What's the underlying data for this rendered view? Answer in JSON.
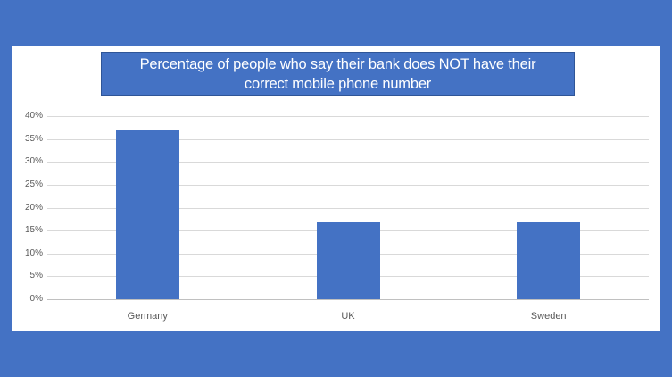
{
  "frame": {
    "background_color": "#4472C4"
  },
  "panel": {
    "background_color": "#FFFFFF"
  },
  "title_box": {
    "fill_color": "#4472C4",
    "border_color": "#2F5597",
    "text_color": "#FFFFFF",
    "lines": [
      "Percentage of people who say their bank does NOT have their",
      "correct mobile phone number"
    ]
  },
  "chart_data": {
    "type": "bar",
    "title": "Percentage of people who say their bank does NOT have their correct mobile phone number",
    "categories": [
      "Germany",
      "UK",
      "Sweden"
    ],
    "values": [
      37,
      17,
      17
    ],
    "xlabel": "",
    "ylabel": "",
    "ylim": [
      0,
      40
    ],
    "y_tick_step": 5,
    "y_tick_labels": [
      "40%",
      "35%",
      "30%",
      "25%",
      "20%",
      "15%",
      "10%",
      "5%",
      "0%"
    ],
    "grid": true,
    "legend": "none",
    "bar_color": "#4472C4",
    "gridline_color": "#D9D9D9",
    "axis_line_color": "#C0C0C0",
    "axis_text_color": "#595959"
  }
}
